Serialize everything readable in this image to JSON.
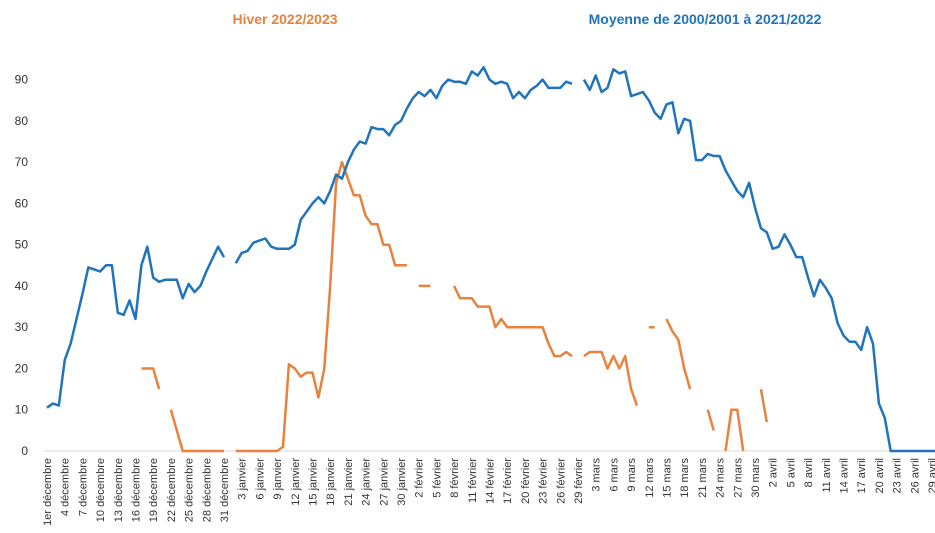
{
  "chart_data": {
    "type": "line",
    "categories": [
      "1er décembre",
      null,
      null,
      "4 décembre",
      null,
      null,
      "7 décembre",
      null,
      null,
      "10 décembre",
      null,
      null,
      "13 décembre",
      null,
      null,
      "16 décembre",
      null,
      null,
      "19 décembre",
      null,
      null,
      "22 décembre",
      null,
      null,
      "25 décembre",
      null,
      null,
      "28 décembre",
      null,
      null,
      "31 décembre",
      null,
      null,
      "3 janvier",
      null,
      null,
      "6 janvier",
      null,
      null,
      "9 janvier",
      null,
      null,
      "12 janvier",
      null,
      null,
      "15 janvier",
      null,
      null,
      "18 janvier",
      null,
      null,
      "21 janvier",
      null,
      null,
      "24 janvier",
      null,
      null,
      "27 janvier",
      null,
      null,
      "30 janvier",
      null,
      null,
      "2 février",
      null,
      null,
      "5 février",
      null,
      null,
      "8 février",
      null,
      null,
      "11 février",
      null,
      null,
      "14 février",
      null,
      null,
      "17 février",
      null,
      null,
      "20 février",
      null,
      null,
      "23 février",
      null,
      null,
      "26 février",
      null,
      null,
      "29 février",
      null,
      null,
      "3 mars",
      null,
      null,
      "6 mars",
      null,
      null,
      "9 mars",
      null,
      null,
      "12 mars",
      null,
      null,
      "15 mars",
      null,
      null,
      "18 mars",
      null,
      null,
      "21 mars",
      null,
      null,
      "24 mars",
      null,
      null,
      "27 mars",
      null,
      null,
      "30 mars",
      null,
      null,
      "2 avril",
      null,
      null,
      "5 avril",
      null,
      null,
      "8 avril",
      null,
      null,
      "11 avril",
      null,
      null,
      "14 avril",
      null,
      null,
      "17 avril",
      null,
      null,
      "20 avril",
      null,
      null,
      "23 avril",
      null,
      null,
      "26 avril",
      null,
      null,
      "29 avril",
      null
    ],
    "series": [
      {
        "name": "Hiver 2022/2023",
        "color": "#e8823c",
        "values": [
          null,
          null,
          null,
          null,
          null,
          null,
          null,
          null,
          null,
          null,
          null,
          null,
          null,
          null,
          null,
          null,
          20,
          20,
          20,
          15,
          null,
          10,
          5,
          0,
          0,
          0,
          0,
          0,
          0,
          0,
          0,
          null,
          0,
          0,
          0,
          0,
          0,
          0,
          0,
          0,
          1,
          21,
          20,
          18,
          19,
          19,
          13,
          20,
          40,
          65,
          70,
          66,
          62,
          62,
          57,
          55,
          55,
          50,
          50,
          45,
          45,
          45,
          null,
          40,
          40,
          40,
          null,
          null,
          null,
          40,
          37,
          37,
          37,
          35,
          35,
          35,
          30,
          32,
          30,
          30,
          30,
          30,
          30,
          30,
          30,
          26,
          23,
          23,
          24,
          23,
          null,
          23,
          24,
          24,
          24,
          20,
          23,
          20,
          23,
          15,
          11,
          null,
          30,
          30,
          null,
          32,
          29,
          27,
          20,
          15,
          null,
          null,
          10,
          5,
          null,
          0,
          10,
          10,
          0,
          null,
          null,
          15,
          7,
          null,
          null,
          null,
          null,
          null,
          null,
          null,
          null,
          null,
          null,
          null,
          null,
          null,
          null,
          null,
          null,
          null,
          null,
          null,
          null,
          null,
          null,
          null,
          null,
          null,
          null,
          null,
          null,
          null
        ]
      },
      {
        "name": "Moyenne de 2000/2001 à 2021/2022",
        "color": "#1f74bd",
        "values": [
          10.5,
          11.5,
          11,
          22,
          26,
          32,
          38,
          44.5,
          44,
          43.5,
          45,
          45,
          33.5,
          33,
          36.5,
          32,
          45,
          49.5,
          42,
          41,
          41.5,
          41.5,
          41.5,
          37,
          40.5,
          38.5,
          40,
          43.5,
          46.5,
          49.5,
          47,
          null,
          45.5,
          48,
          48.5,
          50.5,
          51,
          51.5,
          49.5,
          49,
          49,
          49,
          50,
          56,
          58,
          60,
          61.5,
          60,
          63,
          67,
          66,
          70,
          73,
          75,
          74.5,
          78.5,
          78,
          78,
          76.5,
          79,
          80,
          83,
          85.5,
          87,
          86,
          87.5,
          85.5,
          88.5,
          90,
          89.5,
          89.5,
          89,
          92,
          91,
          93,
          90,
          89,
          89.5,
          89,
          85.5,
          87,
          85.5,
          87.5,
          88.5,
          90,
          88,
          88,
          88,
          89.5,
          89,
          null,
          90,
          87.5,
          91,
          87,
          88,
          92.5,
          91.5,
          92,
          86,
          86.5,
          87,
          85,
          82,
          80.5,
          84,
          84.5,
          77,
          80.5,
          80,
          70.5,
          70.5,
          72,
          71.5,
          71.5,
          68,
          65.5,
          63,
          61.5,
          65,
          59,
          54,
          53,
          49,
          49.5,
          52.5,
          50,
          47,
          47,
          42,
          37.5,
          41.5,
          39.5,
          37,
          31,
          28,
          26.5,
          26.5,
          24.5,
          30,
          26,
          11.5,
          8,
          0,
          0,
          0,
          0,
          0,
          0,
          0,
          0,
          0
        ]
      }
    ],
    "ylim": [
      0,
      95
    ],
    "yticks": [
      0,
      10,
      20,
      30,
      40,
      50,
      60,
      70,
      80,
      90
    ]
  }
}
